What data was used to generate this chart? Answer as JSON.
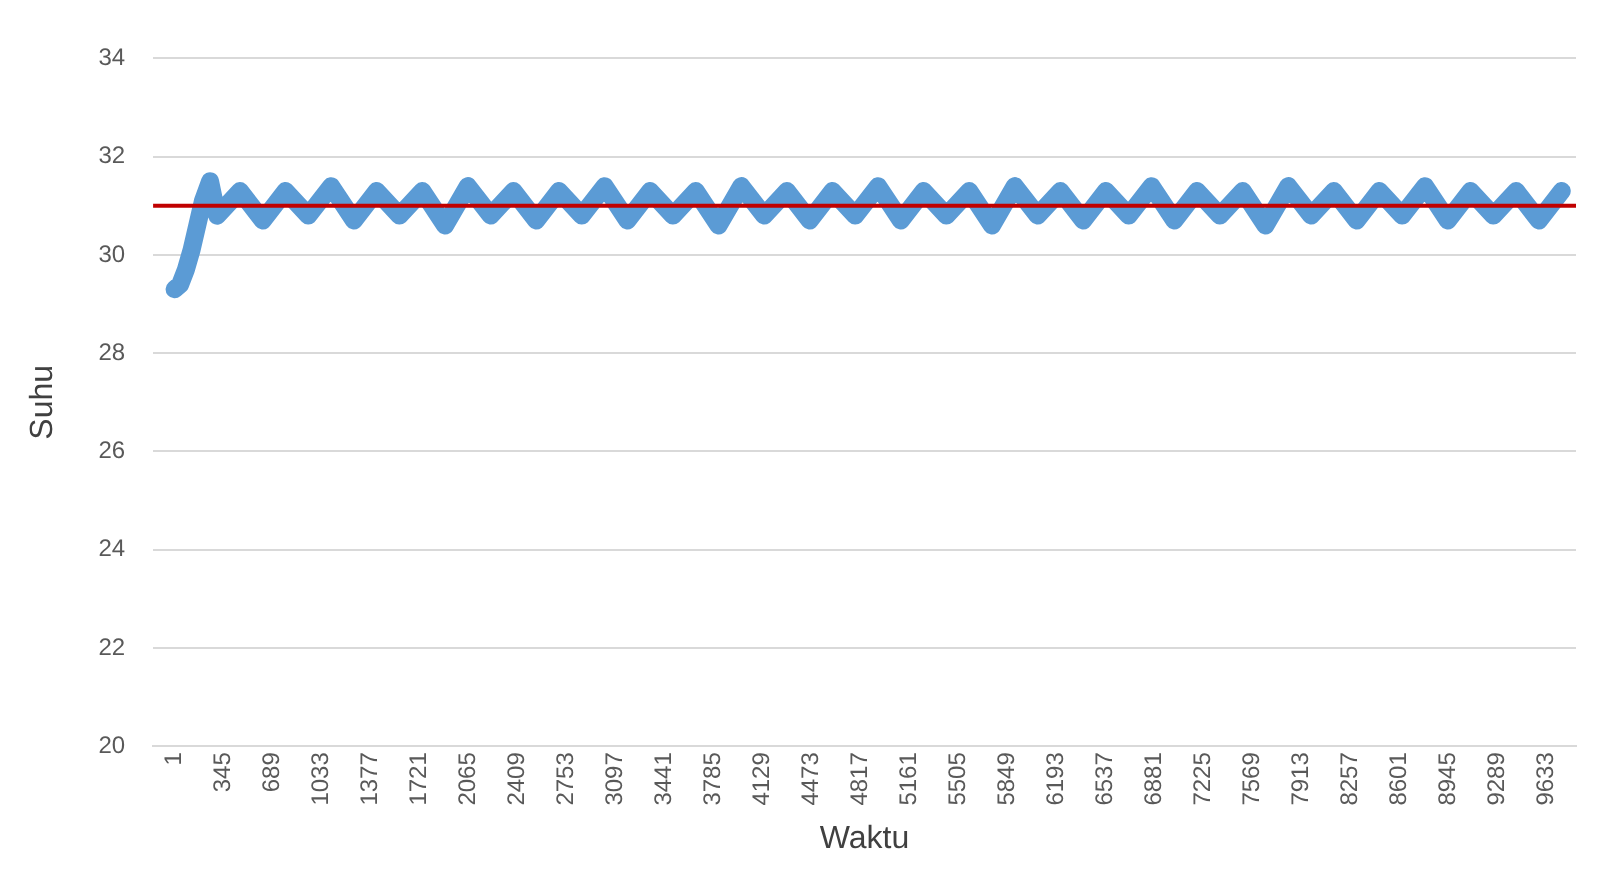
{
  "chart_data": {
    "type": "line",
    "xlabel": "Waktu",
    "ylabel": "Suhu",
    "x": [
      1,
      40,
      80,
      120,
      160,
      200,
      250,
      300,
      460,
      620,
      780,
      940,
      1100,
      1260,
      1420,
      1580,
      1740,
      1900,
      2060,
      2220,
      2380,
      2540,
      2700,
      2860,
      3020,
      3180,
      3340,
      3500,
      3660,
      3820,
      3980,
      4140,
      4300,
      4460,
      4620,
      4780,
      4940,
      5100,
      5260,
      5420,
      5580,
      5740,
      5900,
      6060,
      6220,
      6380,
      6540,
      6700,
      6860,
      7020,
      7180,
      7340,
      7500,
      7660,
      7820,
      7980,
      8140,
      8300,
      8460,
      8620,
      8780,
      8940,
      9100,
      9260,
      9420,
      9580,
      9740
    ],
    "series": [
      {
        "color": "#5b9bd5",
        "values": [
          29.3,
          29.4,
          29.7,
          30.1,
          30.6,
          31.1,
          31.5,
          30.8,
          31.3,
          30.7,
          31.3,
          30.8,
          31.4,
          30.7,
          31.3,
          30.8,
          31.3,
          30.6,
          31.4,
          30.8,
          31.3,
          30.7,
          31.3,
          30.8,
          31.4,
          30.7,
          31.3,
          30.8,
          31.3,
          30.6,
          31.4,
          30.8,
          31.3,
          30.7,
          31.3,
          30.8,
          31.4,
          30.7,
          31.3,
          30.8,
          31.3,
          30.6,
          31.4,
          30.8,
          31.3,
          30.7,
          31.3,
          30.8,
          31.4,
          30.7,
          31.3,
          30.8,
          31.3,
          30.6,
          31.4,
          30.8,
          31.3,
          30.7,
          31.3,
          30.8,
          31.4,
          30.7,
          31.3,
          30.8,
          31.3,
          30.7,
          31.3
        ]
      }
    ],
    "xlim": [
      -150,
      9840
    ],
    "xticks": [
      1,
      345,
      689,
      1033,
      1377,
      1721,
      2065,
      2409,
      2753,
      3097,
      3441,
      3785,
      4129,
      4473,
      4817,
      5161,
      5505,
      5849,
      6193,
      6537,
      6881,
      7225,
      7569,
      7913,
      8257,
      8601,
      8945,
      9289,
      9633
    ],
    "ylim": [
      20,
      34
    ],
    "yticks": [
      20,
      22,
      24,
      26,
      28,
      30,
      32,
      34
    ],
    "ref_lines": [
      {
        "axis": "y",
        "value": 31,
        "color": "#c00000"
      }
    ],
    "grid": "y",
    "legend": false,
    "marker": "none",
    "line_style": "solid"
  }
}
